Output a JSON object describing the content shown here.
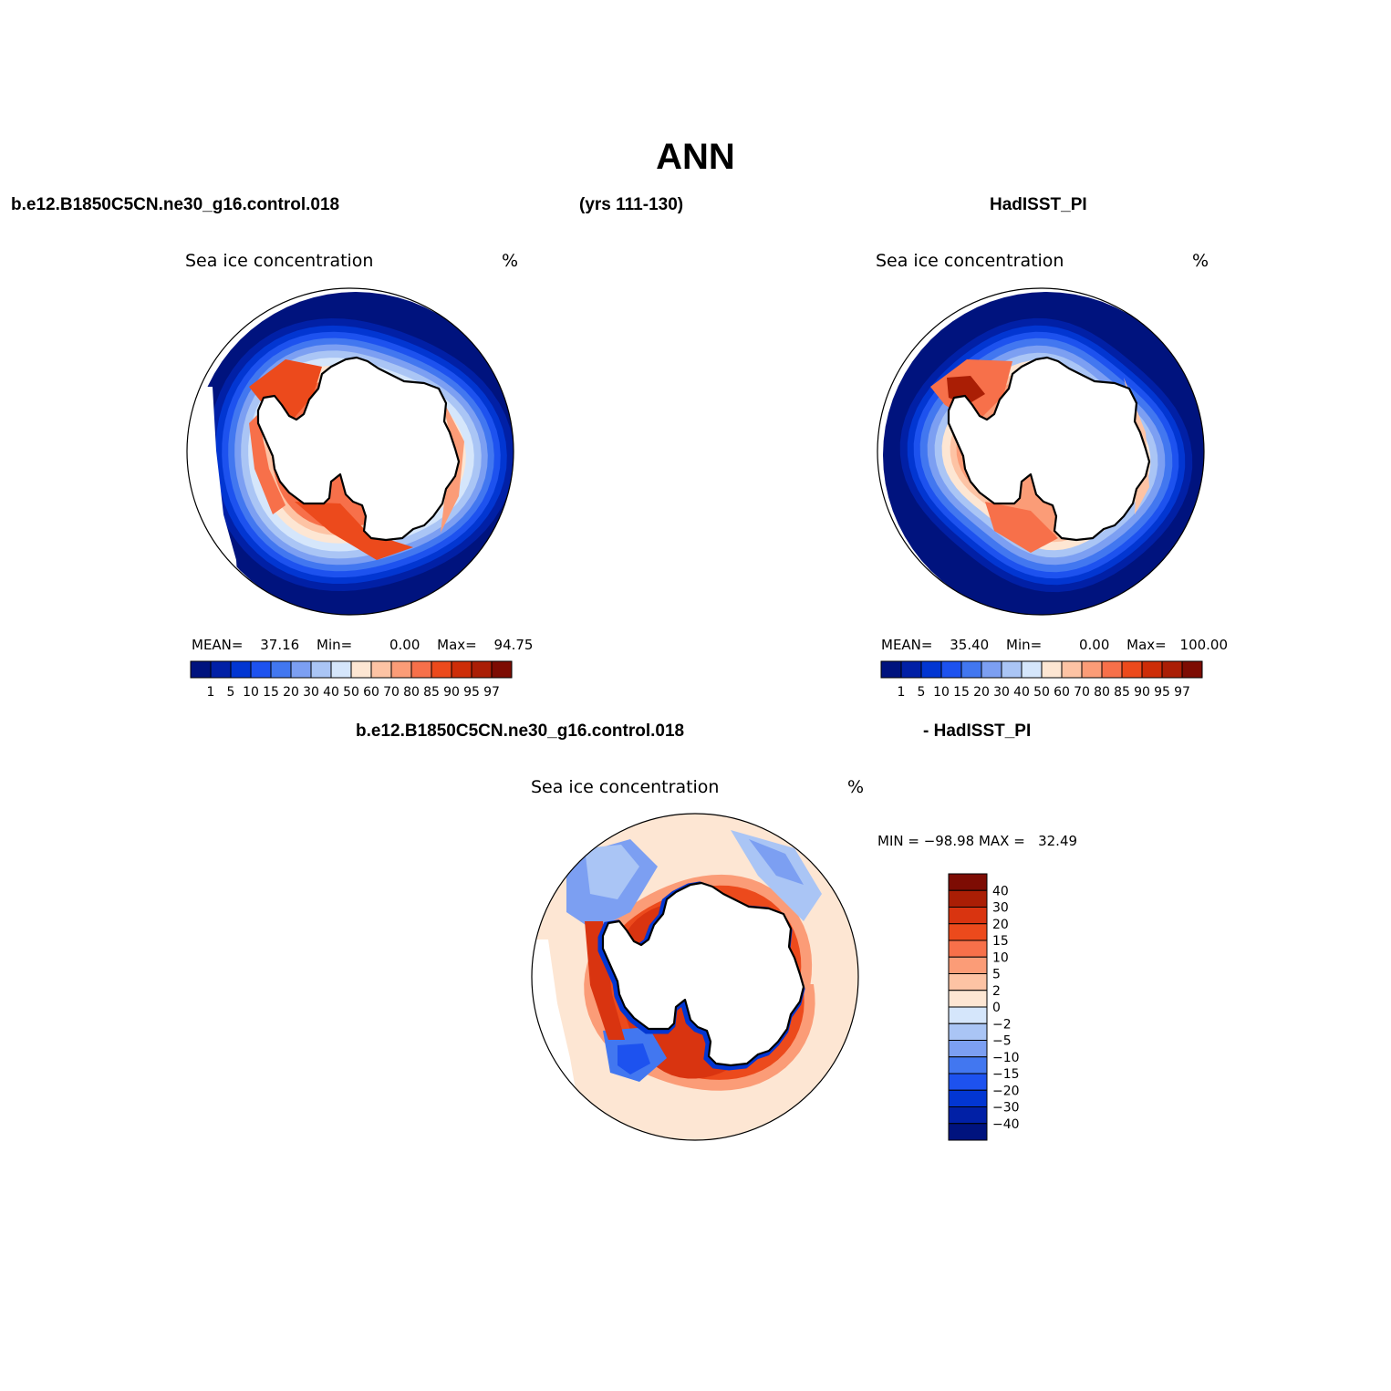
{
  "page": {
    "title": "ANN",
    "header_left": "b.e12.B1850C5CN.ne30_g16.control.018",
    "header_center": "(yrs 111-130)",
    "header_right": "HadISST_PI",
    "diff_header_left": "b.e12.B1850C5CN.ne30_g16.control.018",
    "diff_header_right": "- HadISST_PI"
  },
  "panels": {
    "model": {
      "field": "Sea ice concentration",
      "units": "%",
      "mean_label": "MEAN=",
      "mean": "37.16",
      "min_label": "Min=",
      "min": "0.00",
      "max_label": "Max=",
      "max": "94.75"
    },
    "obs": {
      "field": "Sea ice concentration",
      "units": "%",
      "mean_label": "MEAN=",
      "mean": "35.40",
      "min_label": "Min=",
      "min": "0.00",
      "max_label": "Max=",
      "max": "100.00"
    },
    "diff": {
      "field": "Sea ice concentration",
      "units": "%",
      "minmax_text": "MIN = −98.98 MAX =   32.49"
    }
  },
  "colorbar_abs": {
    "levels": [
      "1",
      "5",
      "10",
      "15",
      "20",
      "30",
      "40",
      "50",
      "60",
      "70",
      "80",
      "85",
      "90",
      "95",
      "97"
    ],
    "colors": [
      "#00137e",
      "#0120a6",
      "#0236d2",
      "#1d52ef",
      "#4277f0",
      "#7c9ff2",
      "#aac5f5",
      "#d5e6fb",
      "#fde6d3",
      "#fdc3a4",
      "#fb9c77",
      "#f7704a",
      "#ec4a1c",
      "#cd2d08",
      "#aa1e05",
      "#7d0c03"
    ]
  },
  "colorbar_diff": {
    "levels": [
      "40",
      "30",
      "20",
      "15",
      "10",
      "5",
      "2",
      "0",
      "−2",
      "−5",
      "−10",
      "−15",
      "−20",
      "−30",
      "−40"
    ],
    "colors": [
      "#7d0c03",
      "#aa1e05",
      "#d93410",
      "#ec4a1c",
      "#f7704a",
      "#fb9c77",
      "#fdc3a4",
      "#fde6d3",
      "#d5e6fb",
      "#aac5f5",
      "#7c9ff2",
      "#4277f0",
      "#1d52ef",
      "#0236d2",
      "#0120a6",
      "#00137e"
    ]
  }
}
